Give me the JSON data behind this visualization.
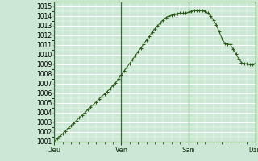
{
  "background_color": "#cce8d4",
  "plot_bg_color": "#cce8d4",
  "grid_color": "#ffffff",
  "grid_minor_color": "#ddeee5",
  "line_color": "#2d5a1b",
  "marker_color": "#2d5a1b",
  "vline_color": "#3a6b3a",
  "ylim": [
    1001,
    1015.5
  ],
  "yticks": [
    1001,
    1002,
    1003,
    1004,
    1005,
    1006,
    1007,
    1008,
    1009,
    1010,
    1011,
    1012,
    1013,
    1014,
    1015
  ],
  "day_labels": [
    "Jeu",
    "Ven",
    "Sam",
    "Dim"
  ],
  "day_positions": [
    0,
    24,
    48,
    72
  ],
  "total_hours": 73,
  "pressure_values": [
    1001.0,
    1001.3,
    1001.55,
    1001.8,
    1002.1,
    1002.4,
    1002.65,
    1002.9,
    1003.2,
    1003.5,
    1003.75,
    1004.0,
    1004.3,
    1004.6,
    1004.85,
    1005.1,
    1005.4,
    1005.7,
    1005.95,
    1006.2,
    1006.5,
    1006.8,
    1007.1,
    1007.5,
    1007.9,
    1008.3,
    1008.7,
    1009.1,
    1009.5,
    1009.9,
    1010.3,
    1010.7,
    1011.1,
    1011.5,
    1011.9,
    1012.3,
    1012.7,
    1013.0,
    1013.3,
    1013.6,
    1013.85,
    1014.0,
    1014.1,
    1014.2,
    1014.25,
    1014.3,
    1014.3,
    1014.3,
    1014.4,
    1014.5,
    1014.55,
    1014.6,
    1014.62,
    1014.6,
    1014.5,
    1014.3,
    1014.0,
    1013.6,
    1013.1,
    1012.4,
    1011.7,
    1011.2,
    1011.1,
    1011.05,
    1010.6,
    1010.1,
    1009.6,
    1009.2,
    1009.1,
    1009.05,
    1009.0,
    1009.0,
    1009.1
  ]
}
